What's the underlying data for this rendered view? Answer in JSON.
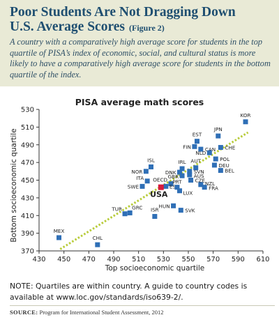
{
  "header": {
    "title_line1": "Poor Students Are Not Dragging Down",
    "title_line2": "U.S. Average Scores",
    "figure_label": "(Figure 2)",
    "subtitle": "A country with a comparatively high average score for students in the top quartile of PISA’s index of economic, social, and cultural status is more likely to have a comparatively high average score for students in the bottom quartile of the index."
  },
  "colors": {
    "header_bg": "#e9ead6",
    "title": "#1f4f71",
    "marker": "#2f6fb6",
    "usa_marker": "#d81b3c",
    "trend": "#b8cc3a"
  },
  "chart_data": {
    "type": "scatter",
    "title": "PISA average math scores",
    "xlabel": "Top socioeconomic quartile",
    "ylabel": "Bottom socioeconomic quartile",
    "xlim": [
      430,
      610
    ],
    "ylim": [
      370,
      530
    ],
    "xticks": [
      430,
      450,
      470,
      490,
      510,
      530,
      550,
      570,
      590,
      610
    ],
    "yticks": [
      370,
      390,
      410,
      430,
      450,
      470,
      490,
      510,
      530
    ],
    "grid": false,
    "points": [
      {
        "label": "KOR",
        "x": 596,
        "y": 516
      },
      {
        "label": "JPN",
        "x": 574,
        "y": 500
      },
      {
        "label": "EST",
        "x": 557,
        "y": 494
      },
      {
        "label": "CHE",
        "x": 576,
        "y": 487
      },
      {
        "label": "FIN",
        "x": 555,
        "y": 488
      },
      {
        "label": "CAN",
        "x": 560,
        "y": 485
      },
      {
        "label": "NLD",
        "x": 567,
        "y": 481
      },
      {
        "label": "POL",
        "x": 572,
        "y": 474
      },
      {
        "label": "DEU",
        "x": 571,
        "y": 467
      },
      {
        "label": "BEL",
        "x": 576,
        "y": 461
      },
      {
        "label": "ISL",
        "x": 520,
        "y": 465
      },
      {
        "label": "NOR",
        "x": 516,
        "y": 460
      },
      {
        "label": "IRL",
        "x": 545,
        "y": 463
      },
      {
        "label": "AUT",
        "x": 556,
        "y": 464
      },
      {
        "label": "DNK",
        "x": 543,
        "y": 459
      },
      {
        "label": "SVN",
        "x": 551,
        "y": 460
      },
      {
        "label": "GBR",
        "x": 545,
        "y": 455
      },
      {
        "label": "AUS",
        "x": 551,
        "y": 456
      },
      {
        "label": "ITA",
        "x": 517,
        "y": 449
      },
      {
        "label": "SWE",
        "x": 513,
        "y": 443
      },
      {
        "label": "OECD",
        "x": 536,
        "y": 446
      },
      {
        "label": "CZE",
        "x": 552,
        "y": 450
      },
      {
        "label": "ESP",
        "x": 532,
        "y": 443
      },
      {
        "label": "USA",
        "x": 528,
        "y": 442,
        "highlight": true
      },
      {
        "label": "PRT",
        "x": 541,
        "y": 442
      },
      {
        "label": "NZL",
        "x": 560,
        "y": 445
      },
      {
        "label": "FRA",
        "x": 563,
        "y": 442
      },
      {
        "label": "LUX",
        "x": 543,
        "y": 438
      },
      {
        "label": "HUN",
        "x": 538,
        "y": 421
      },
      {
        "label": "SVK",
        "x": 544,
        "y": 416
      },
      {
        "label": "ISR",
        "x": 523,
        "y": 409
      },
      {
        "label": "TUR",
        "x": 499,
        "y": 412
      },
      {
        "label": "GRC",
        "x": 503,
        "y": 413
      },
      {
        "label": "MEX",
        "x": 446,
        "y": 385
      },
      {
        "label": "CHL",
        "x": 477,
        "y": 377
      }
    ],
    "trendline": {
      "x": [
        447,
        598
      ],
      "y": [
        372,
        504
      ]
    }
  },
  "notes": {
    "note": "NOTE: Quartiles are within country. A guide to country codes is available at www.loc.gov/standards/iso639-2/.",
    "source_label": "SOURCE:",
    "source_text": "Program for International Student Assessment, 2012"
  }
}
